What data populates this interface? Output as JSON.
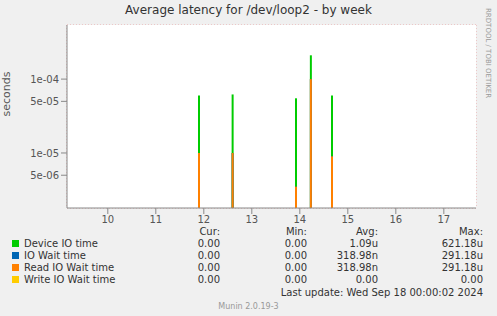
{
  "chart_data": {
    "type": "line",
    "title": "Average latency for /dev/loop2 - by week",
    "y_label": "seconds",
    "side_text": "RRDTOOL / TOBI OETIKER",
    "x": [
      11.9,
      12.6,
      13.92,
      14.23,
      14.67
    ],
    "xlim": [
      9.15,
      17.67
    ],
    "xticks": [
      10,
      11,
      12,
      13,
      14,
      15,
      16,
      17
    ],
    "ylim": [
      1.8e-06,
      0.00054
    ],
    "yticks": [
      {
        "value": 5e-06,
        "label": "5e-06"
      },
      {
        "value": 1e-05,
        "label": "1e-05"
      },
      {
        "value": 5e-05,
        "label": "5e-05"
      },
      {
        "value": 0.0001,
        "label": "1e-04"
      }
    ],
    "log": "y",
    "grid": true,
    "legend": "bottom",
    "legend_columns": [
      "Cur:",
      "Min:",
      "Avg:",
      "Max:"
    ],
    "series": [
      {
        "name": "Device IO time",
        "color": "#00CC00",
        "values": [
          6e-05,
          6.2e-05,
          5.5e-05,
          0.00021,
          6e-05
        ],
        "stats": [
          "0.00",
          "0.00",
          "1.09u",
          "621.18u"
        ]
      },
      {
        "name": "IO Wait time",
        "color": "#0066B3",
        "values": [
          1e-05,
          1e-05,
          3.5e-06,
          0.0001,
          9e-06
        ],
        "stats": [
          "0.00",
          "0.00",
          "318.98n",
          "291.18u"
        ]
      },
      {
        "name": "Read IO Wait time",
        "color": "#FF8000",
        "values": [
          1e-05,
          1e-05,
          3.5e-06,
          0.0001,
          9e-06
        ],
        "stats": [
          "0.00",
          "0.00",
          "318.98n",
          "291.18u"
        ]
      },
      {
        "name": "Write IO Wait time",
        "color": "#FFCC00",
        "values": [
          null,
          null,
          null,
          null,
          null
        ],
        "stats": [
          "0.00",
          "0.00",
          "0.00",
          "0.00"
        ]
      }
    ],
    "last_update": "Last update: Wed Sep 18 00:00:02 2024",
    "footer": "Munin 2.0.19-3"
  }
}
